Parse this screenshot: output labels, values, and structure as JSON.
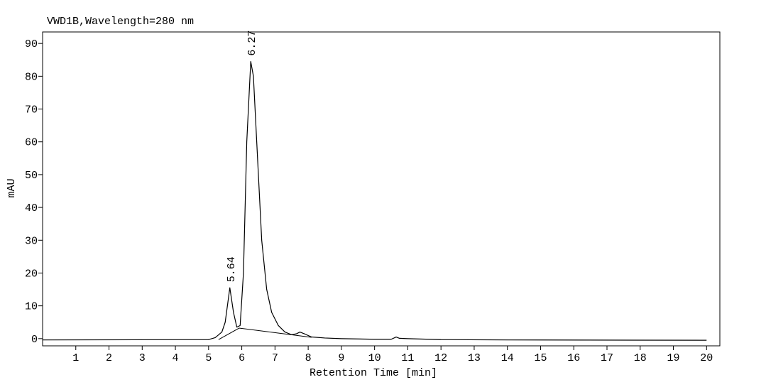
{
  "chart_data": {
    "type": "line",
    "title": "VWD1B,Wavelength=280 nm",
    "x_label": "Retention Time [min]",
    "y_label": "mAU",
    "x": [
      0,
      5.0,
      5.2,
      5.4,
      5.5,
      5.64,
      5.75,
      5.85,
      5.95,
      6.05,
      6.15,
      6.27,
      6.35,
      6.45,
      6.6,
      6.75,
      6.9,
      7.1,
      7.3,
      7.5,
      7.65,
      7.75,
      7.9,
      8.1,
      8.5,
      9,
      10,
      10.5,
      10.65,
      10.75,
      11,
      12,
      14,
      20
    ],
    "values": [
      -0.4,
      -0.3,
      0.3,
      2,
      5,
      15.5,
      8,
      3.5,
      4,
      20,
      60,
      84.5,
      80,
      60,
      30,
      15,
      8,
      4,
      2,
      1.2,
      1.5,
      2,
      1.4,
      0.5,
      0.2,
      0,
      -0.2,
      -0.2,
      0.5,
      0.1,
      0,
      -0.3,
      -0.4,
      -0.5
    ],
    "color": "#000000",
    "baseline": {
      "x": [
        5.3,
        5.92,
        8.1
      ],
      "y": [
        -0.3,
        3.2,
        0.4
      ]
    },
    "annotations": [
      {
        "label": "5.64",
        "x": 5.64,
        "y": 15.5
      },
      {
        "label": "6.27",
        "x": 6.27,
        "y": 84.5
      }
    ],
    "xlim": [
      0,
      20.4
    ],
    "ylim": [
      -2.2,
      93.5
    ],
    "xticks": [
      1,
      2,
      3,
      4,
      5,
      6,
      7,
      8,
      9,
      10,
      11,
      12,
      13,
      14,
      15,
      16,
      17,
      18,
      19,
      20
    ],
    "yticks": [
      0,
      10,
      20,
      30,
      40,
      50,
      60,
      70,
      80,
      90
    ]
  }
}
